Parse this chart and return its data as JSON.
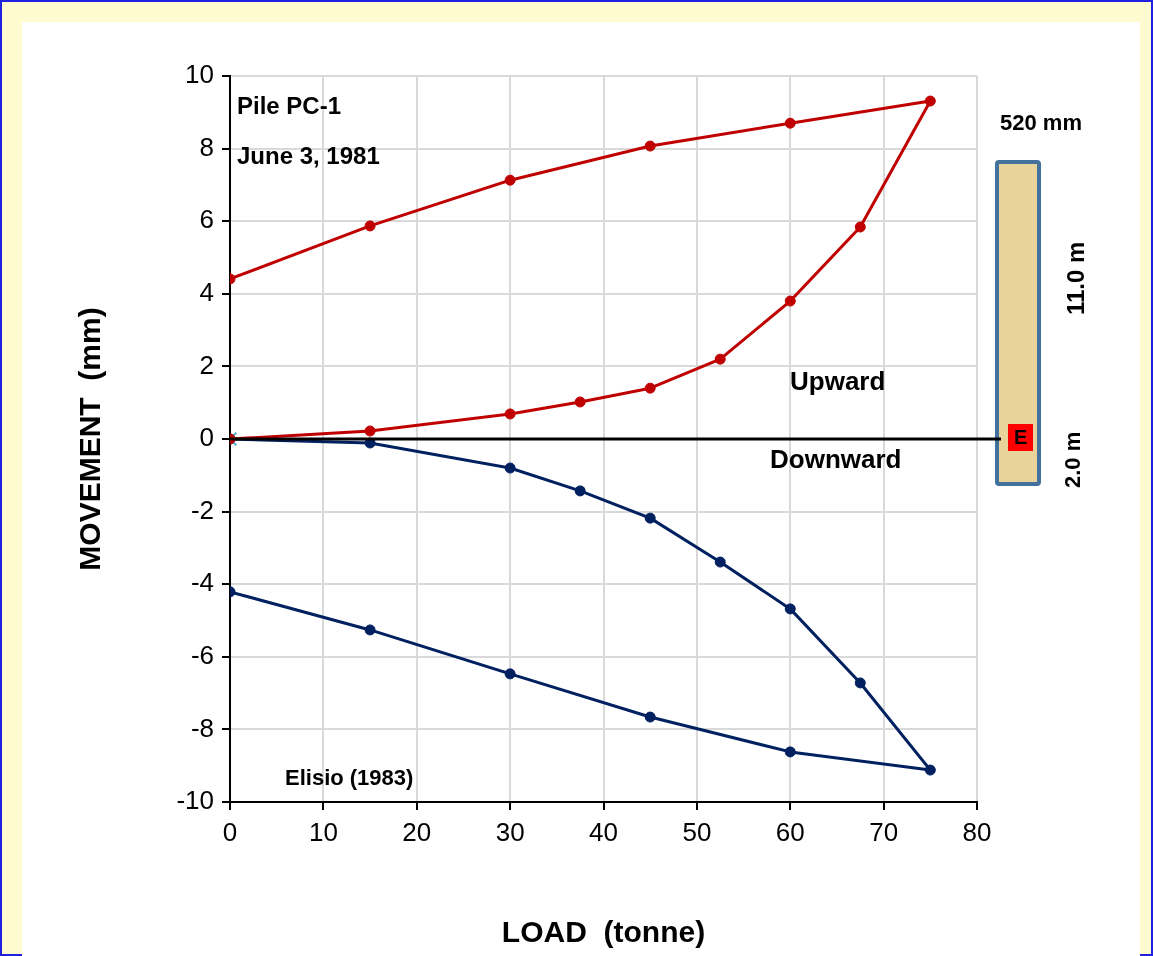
{
  "chart_data": {
    "type": "line",
    "xlabel": "LOAD  (tonne)",
    "ylabel": "MOVEMENT  (mm)",
    "xlim": [
      0,
      80
    ],
    "xticks": [
      0,
      10,
      20,
      30,
      40,
      50,
      60,
      70,
      80
    ],
    "ylim": [
      -10,
      10
    ],
    "yticks": [
      -10,
      -8,
      -6,
      -4,
      -2,
      0,
      2,
      4,
      6,
      8,
      10
    ],
    "grid": true,
    "legend": false,
    "marker": "circle",
    "line_style": "solid",
    "series": [
      {
        "color": "#c00000",
        "x": [
          0,
          15,
          30,
          37.5,
          45,
          52.5,
          60,
          67.5,
          75,
          60,
          45,
          30,
          15,
          0
        ],
        "values": [
          0,
          0.22,
          0.69,
          1.02,
          1.4,
          2.2,
          3.8,
          5.84,
          9.31,
          8.7,
          8.07,
          7.13,
          5.87,
          4.41
        ]
      },
      {
        "color": "#002060",
        "x": [
          0,
          15,
          30,
          37.5,
          45,
          52.5,
          60,
          67.5,
          75,
          60,
          45,
          30,
          15,
          0
        ],
        "values": [
          0,
          -0.11,
          -0.8,
          -1.43,
          -2.18,
          -3.39,
          -4.68,
          -6.72,
          -9.12,
          -8.62,
          -7.66,
          -6.47,
          -5.26,
          -4.21
        ]
      },
      {
        "type": "scatter",
        "marker": "cross",
        "color": "#4bacc6",
        "x": [
          0
        ],
        "values": [
          0
        ]
      }
    ],
    "ref_lines": [
      {
        "axis": "y",
        "value": 0,
        "color": "#000000"
      }
    ],
    "annotations": [
      "Pile PC-1",
      "June 3, 1981",
      "Upward",
      "Downward",
      "Elisio (1983)",
      "520 mm",
      "11.0 m",
      "2.0 m",
      "E"
    ]
  }
}
